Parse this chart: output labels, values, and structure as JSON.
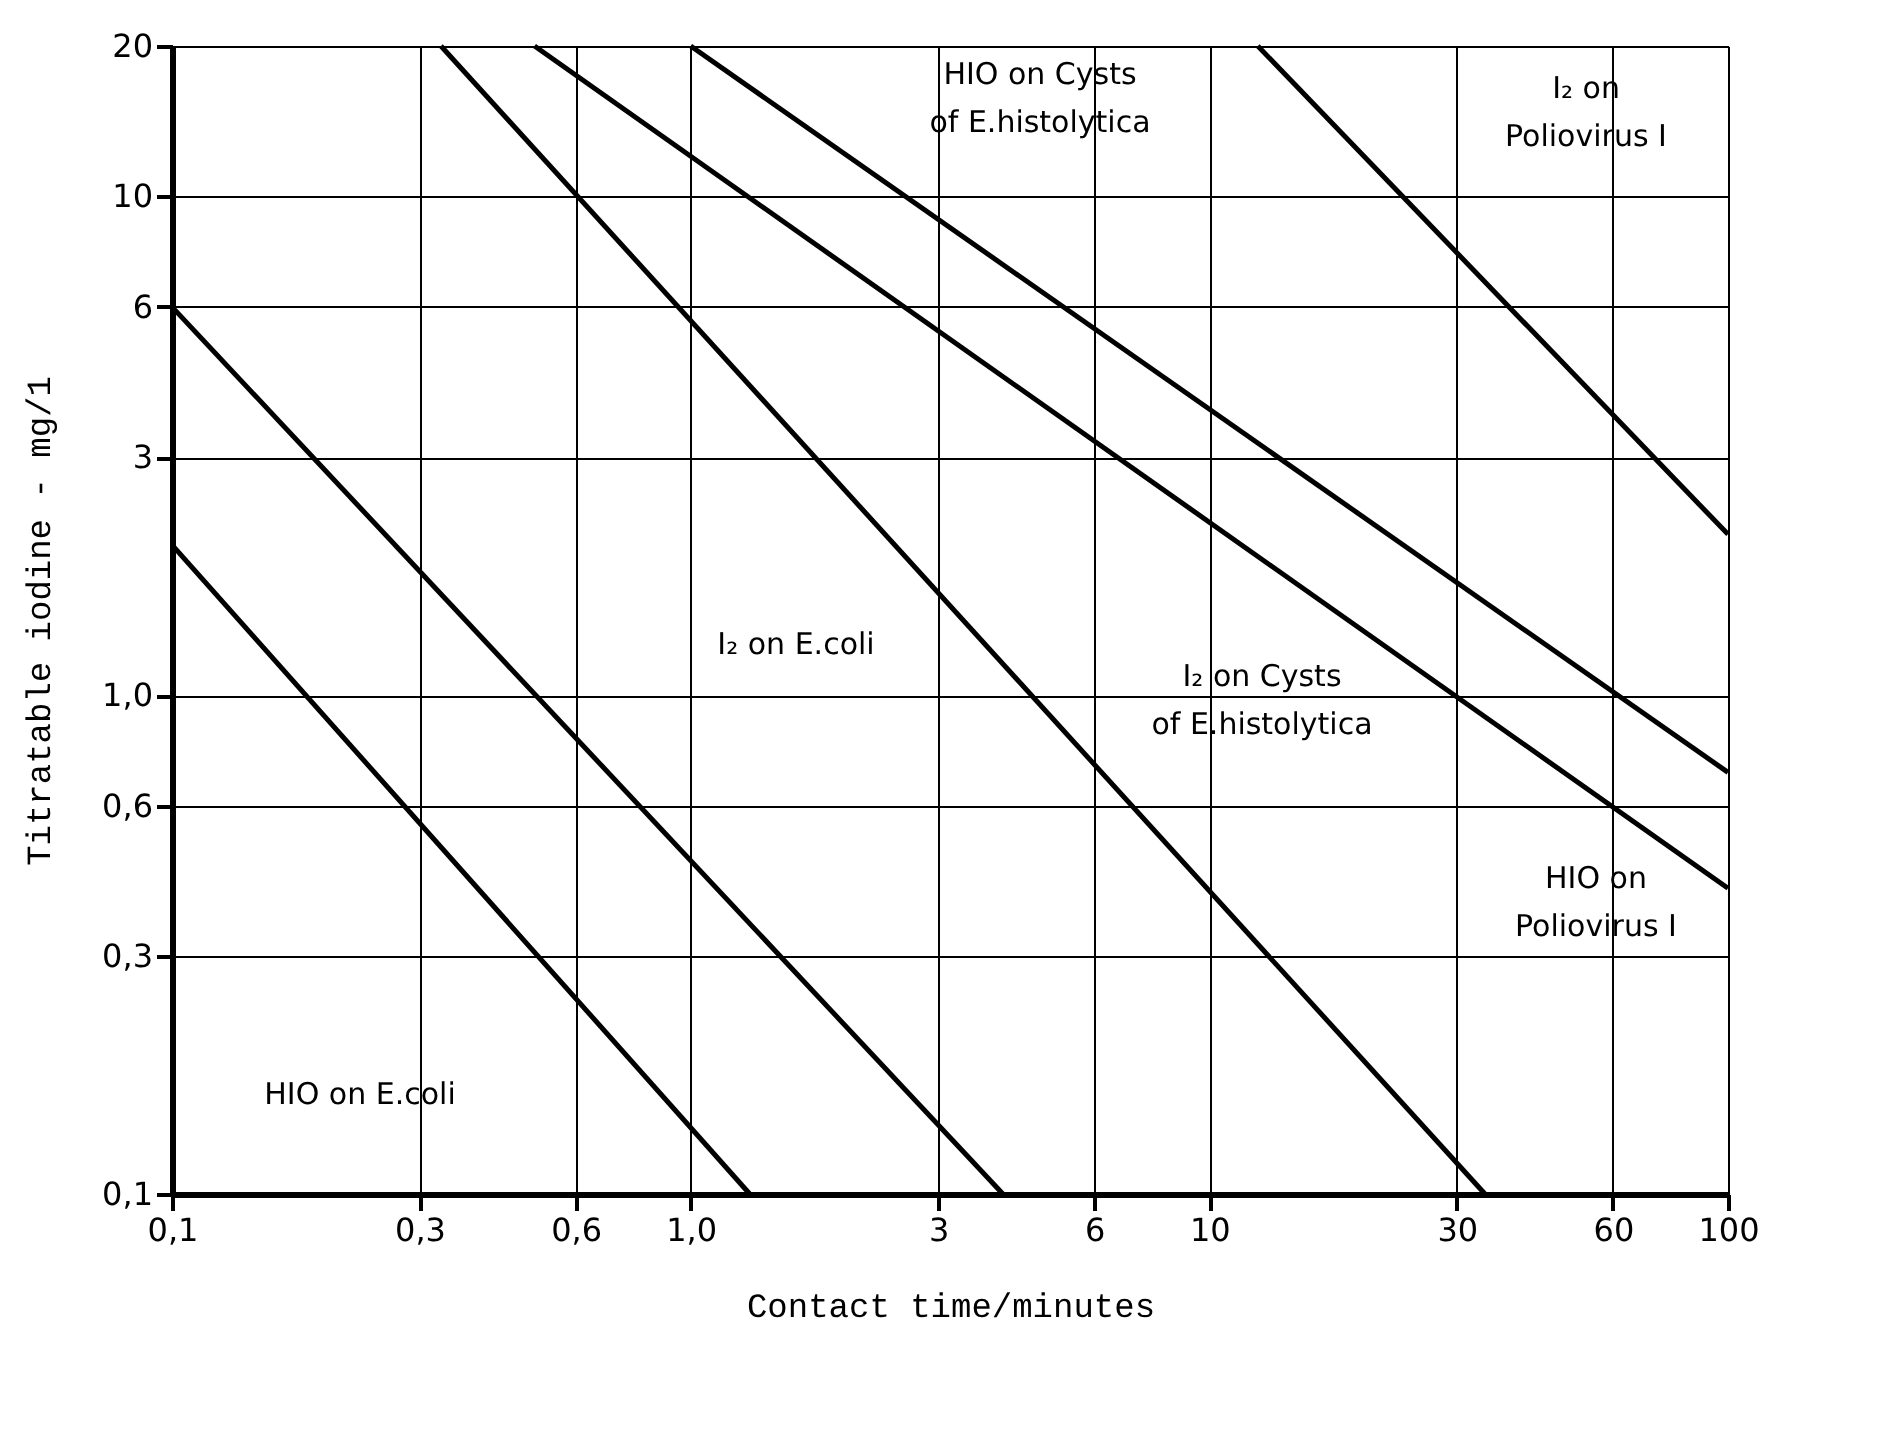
{
  "chart_data": {
    "type": "line",
    "xlabel": "Contact time/minutes",
    "ylabel": "Titratable iodine - mg/1",
    "log": "xy",
    "grid": true,
    "legend": false,
    "marker": "none",
    "line_style": "solid",
    "xlim": [
      0.1,
      100
    ],
    "ylim": [
      0.1,
      20
    ],
    "xticks": [
      {
        "value": 0.1,
        "label": "0,1"
      },
      {
        "value": 0.3,
        "label": "0,3"
      },
      {
        "value": 0.6,
        "label": "0,6"
      },
      {
        "value": 1,
        "label": "1,0"
      },
      3,
      6,
      10,
      30,
      60,
      100
    ],
    "yticks": [
      {
        "value": 0.1,
        "label": "0,1"
      },
      {
        "value": 0.3,
        "label": "0,3"
      },
      {
        "value": 0.6,
        "label": "0,6"
      },
      {
        "value": 1,
        "label": "1,0"
      },
      3,
      6,
      10,
      20
    ],
    "series": [
      {
        "color": "#000000",
        "x": [
          0.1,
          1.3
        ],
        "values": [
          2,
          0.1
        ]
      },
      {
        "color": "#000000",
        "x": [
          0.1,
          4
        ],
        "values": [
          6,
          0.1
        ]
      },
      {
        "color": "#000000",
        "x": [
          0.33,
          34
        ],
        "values": [
          20,
          0.1
        ]
      },
      {
        "color": "#000000",
        "x": [
          0.5,
          100
        ],
        "values": [
          20,
          0.41
        ]
      },
      {
        "color": "#000000",
        "x": [
          1.0,
          100
        ],
        "values": [
          20,
          0.7
        ]
      },
      {
        "color": "#000000",
        "x": [
          12.4,
          100
        ],
        "values": [
          20,
          2.1
        ]
      }
    ],
    "annotations": [
      "HIO on E.coli",
      "I₂ on E.coli",
      "I₂ on Cysts\nof E.histolytica",
      "HIO on\nPoliovirus I",
      "HIO on Cysts\nof E.histolytica",
      "I₂ on\nPoliovirus I"
    ]
  }
}
